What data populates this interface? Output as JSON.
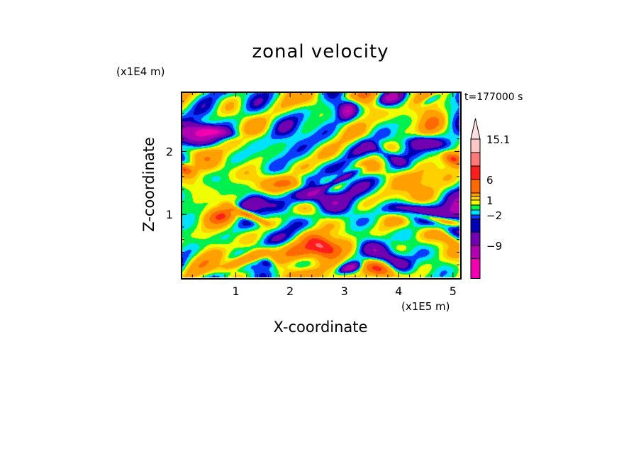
{
  "chart_data": {
    "type": "heatmap",
    "subtype": "filled-contour",
    "title": "zonal velocity",
    "xlabel": "X-coordinate",
    "ylabel": "Z-coordinate",
    "x_unit_label": "(x1E5 m)",
    "y_unit_label": "(x1E4 m)",
    "time_label": "t=177000 s",
    "xlim": [
      0,
      5.12
    ],
    "ylim": [
      0,
      2.94
    ],
    "x_ticks": [
      1,
      2,
      3,
      4,
      5
    ],
    "x_tick_labels": [
      "1",
      "2",
      "3",
      "4",
      "5"
    ],
    "y_ticks": [
      1,
      2
    ],
    "y_tick_labels": [
      "1",
      "2"
    ],
    "colorbar": {
      "levels": [
        15.1,
        12,
        9,
        6,
        3,
        2,
        1,
        0,
        -1,
        -2,
        -3,
        -6,
        -9,
        -12
      ],
      "labels": [
        {
          "value": 15.1,
          "text": "15.1"
        },
        {
          "value": 6,
          "text": "6"
        },
        {
          "value": 1,
          "text": "1"
        },
        {
          "value": -2,
          "text": "-2"
        },
        {
          "value": -9,
          "text": "-9"
        }
      ],
      "colors": [
        "#ffc8c8",
        "#ff7878",
        "#ff1e1e",
        "#ff6a00",
        "#ffa000",
        "#ffd000",
        "#f0ff00",
        "#00f050",
        "#00e0ff",
        "#0a3cff",
        "#0000b4",
        "#7000b0",
        "#b000b0",
        "#f000b0"
      ],
      "extend_max_color": "#ffe0e0",
      "extend": "max"
    }
  }
}
